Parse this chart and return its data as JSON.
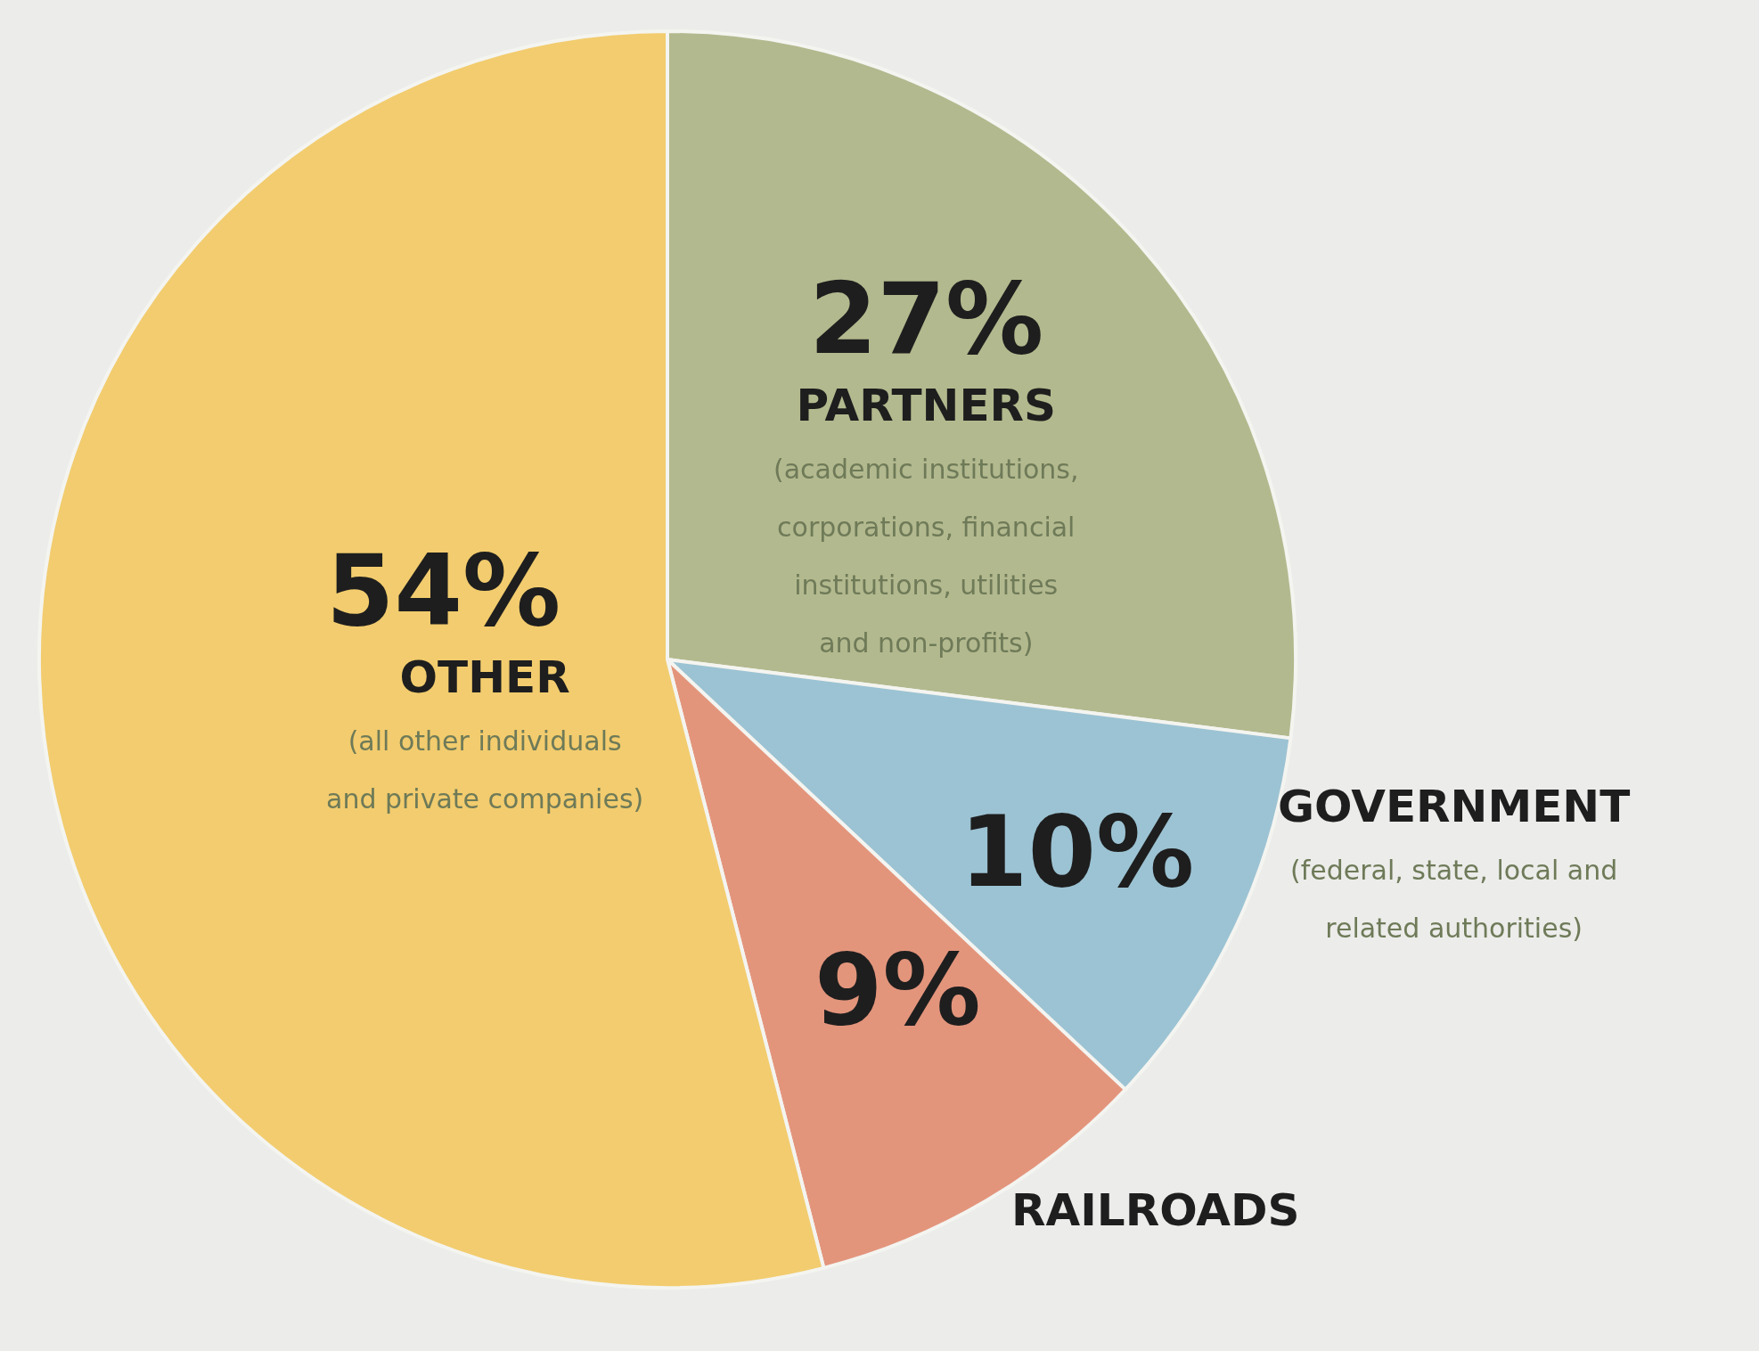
{
  "chart_data": {
    "type": "pie",
    "categories": [
      "PARTNERS\n(academic institutions,\ncorporations, financial\ninstitutions, utilities\nand non-profits)",
      "GOVERNMENT\n(federal, state, local and\nrelated authorities)",
      "RAILROADS",
      "OTHER\n(all other individuals\nand private companies)"
    ],
    "values": [
      27,
      10,
      9,
      54
    ],
    "value_labels": [
      "27%",
      "10%",
      "9%",
      "54%"
    ],
    "colors": [
      "#b3b98e",
      "#9cc3d3",
      "#e3957c",
      "#f2cc6e"
    ]
  }
}
